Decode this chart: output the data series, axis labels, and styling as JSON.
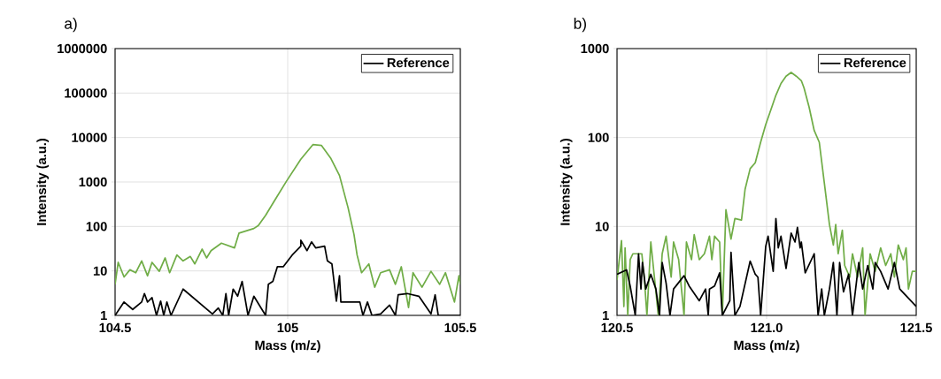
{
  "chart_data": [
    {
      "type": "line",
      "title": "a)",
      "xlabel": "Mass (m/z)",
      "ylabel": "Intensity (a.u.)",
      "xlim": [
        104.5,
        105.5
      ],
      "ylim": [
        1,
        1000000
      ],
      "xticks": [
        104.5,
        105,
        105.5
      ],
      "yticks": [
        1,
        10,
        100,
        1000,
        10000,
        100000,
        1000000
      ],
      "log": "y",
      "grid": true,
      "legend": "top right",
      "series": [
        {
          "color": "#70ad47",
          "x": [
            104.5,
            104.509,
            104.526,
            104.543,
            104.56,
            104.577,
            104.594,
            104.607,
            104.628,
            104.645,
            104.658,
            104.679,
            104.697,
            104.718,
            104.731,
            104.752,
            104.765,
            104.778,
            104.808,
            104.846,
            104.859,
            104.902,
            104.915,
            104.936,
            104.962,
            104.996,
            105.038,
            105.073,
            105.098,
            105.124,
            105.15,
            105.175,
            105.192,
            105.201,
            105.214,
            105.235,
            105.252,
            105.269,
            105.295,
            105.312,
            105.329,
            105.35,
            105.363,
            105.389,
            105.415,
            105.44,
            105.457,
            105.483,
            105.496,
            105.5
          ],
          "values": [
            5,
            15.6,
            7.3,
            10.6,
            9.1,
            16.8,
            7.8,
            15.6,
            9.8,
            19.6,
            9.1,
            22.8,
            16.8,
            21.1,
            14.4,
            30.9,
            19.6,
            28.6,
            42,
            33,
            71,
            90,
            105,
            178,
            383,
            1030,
            3240,
            6930,
            6620,
            3490,
            1400,
            261,
            66,
            22.8,
            9.1,
            14.4,
            4.3,
            9.1,
            10.6,
            5,
            12.4,
            1.5,
            9.1,
            4.3,
            9.8,
            5,
            9.1,
            2,
            7.8,
            5
          ]
        },
        {
          "name": "Reference",
          "color": "#000000",
          "x": [
            104.5,
            104.526,
            104.551,
            104.577,
            104.585,
            104.594,
            104.607,
            104.62,
            104.632,
            104.641,
            104.65,
            104.662,
            104.697,
            104.782,
            104.799,
            104.812,
            104.821,
            104.829,
            104.842,
            104.855,
            104.868,
            104.885,
            104.902,
            104.923,
            104.936,
            104.944,
            104.957,
            104.97,
            104.987,
            105.013,
            105.038,
            105.038,
            105.056,
            105.069,
            105.081,
            105.107,
            105.115,
            105.128,
            105.141,
            105.15,
            105.154,
            105.209,
            105.218,
            105.231,
            105.244,
            105.269,
            105.295,
            105.312,
            105.32,
            105.346,
            105.38,
            105.415,
            105.427,
            105.436,
            105.5
          ],
          "values": [
            1,
            2,
            1.36,
            2,
            3.1,
            2,
            2.5,
            1,
            2.1,
            1,
            2,
            1,
            3.9,
            1.08,
            1.46,
            1,
            3.1,
            1,
            3.9,
            2.7,
            5.8,
            1,
            2.7,
            1.46,
            1,
            5,
            5.8,
            12.4,
            12.4,
            22.8,
            36,
            49,
            28.6,
            45,
            33,
            36,
            16.8,
            14.4,
            2.1,
            7.8,
            2,
            2,
            1,
            2,
            1,
            1.08,
            1.7,
            1,
            2.9,
            3.1,
            2.7,
            1.08,
            2.9,
            1,
            1
          ]
        }
      ]
    },
    {
      "type": "line",
      "title": "b)",
      "xlabel": "Mass (m/z)",
      "ylabel": "Intensity (a.u.)",
      "xlim": [
        120.5,
        121.5
      ],
      "ylim": [
        1,
        1000
      ],
      "xticks": [
        120.5,
        {
          "value": 121,
          "label": "121.0"
        },
        121.5
      ],
      "yticks": [
        1,
        10,
        100,
        1000
      ],
      "log": "y",
      "grid": true,
      "legend": "top right",
      "series": [
        {
          "color": "#70ad47",
          "x": [
            120.5,
            120.515,
            120.523,
            120.527,
            120.536,
            120.544,
            120.553,
            120.583,
            120.591,
            120.6,
            120.613,
            120.625,
            120.638,
            120.651,
            120.664,
            120.681,
            120.689,
            120.706,
            120.724,
            120.732,
            120.749,
            120.758,
            120.775,
            120.792,
            120.809,
            120.817,
            120.826,
            120.843,
            120.852,
            120.864,
            120.881,
            120.894,
            120.916,
            120.928,
            120.945,
            120.962,
            120.98,
            120.997,
            121.014,
            121.031,
            121.048,
            121.065,
            121.082,
            121.099,
            121.116,
            121.125,
            121.142,
            121.159,
            121.176,
            121.193,
            121.21,
            121.223,
            121.231,
            121.239,
            121.253,
            121.261,
            121.278,
            121.287,
            121.304,
            121.321,
            121.329,
            121.346,
            121.363,
            121.381,
            121.398,
            121.415,
            121.427,
            121.44,
            121.457,
            121.466,
            121.474,
            121.487,
            121.5
          ],
          "values": [
            2.49,
            6.94,
            1.26,
            5.74,
            1,
            4.24,
            4.93,
            4.93,
            2.69,
            1,
            6.68,
            2.69,
            1,
            4.93,
            7.78,
            2.69,
            6.68,
            4.24,
            1,
            6.68,
            4.24,
            8.08,
            4.24,
            4.93,
            7.78,
            4.24,
            7.78,
            6.68,
            1,
            15.4,
            7.21,
            12.3,
            11.8,
            26.2,
            44.7,
            52,
            88.5,
            140,
            204,
            299,
            405,
            490,
            540,
            490,
            436,
            361,
            220,
            120,
            88.5,
            30.6,
            10.5,
            6.19,
            10.5,
            4.93,
            9.06,
            3.64,
            2.69,
            4.93,
            2.69,
            5.74,
            1,
            4.93,
            3.13,
            5.74,
            3.64,
            4.93,
            2.69,
            6.19,
            4.24,
            5.74,
            1.98,
            3.13,
            3.13
          ]
        },
        {
          "name": "Reference",
          "color": "#000000",
          "x": [
            120.5,
            120.532,
            120.544,
            120.561,
            120.572,
            120.58,
            120.585,
            120.596,
            120.613,
            120.63,
            120.642,
            120.651,
            120.664,
            120.677,
            120.689,
            120.724,
            120.741,
            120.775,
            120.796,
            120.805,
            120.809,
            120.826,
            120.843,
            120.852,
            120.877,
            120.881,
            120.894,
            120.911,
            120.945,
            120.962,
            120.971,
            120.98,
            120.997,
            121.005,
            121.022,
            121.031,
            121.039,
            121.048,
            121.065,
            121.082,
            121.095,
            121.103,
            121.112,
            121.116,
            121.129,
            121.159,
            121.172,
            121.184,
            121.193,
            121.21,
            121.223,
            121.235,
            121.244,
            121.257,
            121.274,
            121.287,
            121.308,
            121.321,
            121.338,
            121.355,
            121.363,
            121.381,
            121.406,
            121.427,
            121.445,
            121.5
          ],
          "values": [
            2.9,
            3.25,
            2.14,
            1,
            4.93,
            1.98,
            3.93,
            1.98,
            2.9,
            1.98,
            1,
            3.93,
            2.31,
            1,
            1.98,
            2.79,
            2.14,
            1.46,
            1.98,
            1,
            1.98,
            2.14,
            3.01,
            1,
            1.46,
            5.13,
            1,
            1.26,
            4.08,
            2.9,
            2.69,
            1,
            5.97,
            7.78,
            3.13,
            12.3,
            5.74,
            7.78,
            3.37,
            8.4,
            6.68,
            9.78,
            5.74,
            6.68,
            3.01,
            4.93,
            1,
            1.98,
            1,
            1.98,
            3.93,
            1,
            3.93,
            1.84,
            2.9,
            1,
            3.93,
            1.98,
            3.64,
            1.98,
            3.93,
            3.13,
            1.98,
            3.93,
            1.98,
            1.26
          ]
        }
      ]
    }
  ]
}
